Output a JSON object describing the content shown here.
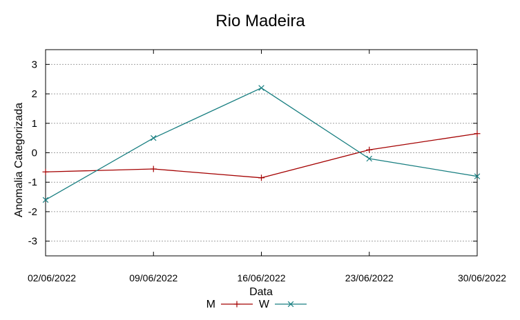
{
  "chart_data": {
    "type": "line",
    "title": "Rio Madeira",
    "xlabel": "Data",
    "ylabel": "Anomalia Categorizada",
    "categories": [
      "02/06/2022",
      "09/06/2022",
      "16/06/2022",
      "23/06/2022",
      "30/06/2022"
    ],
    "y_ticks": [
      "3",
      "2",
      "1",
      "0",
      "-1",
      "-2",
      "-3"
    ],
    "ylim": [
      -3.5,
      3.5
    ],
    "grid": true,
    "legend_position": "bottom",
    "series": [
      {
        "name": "M",
        "color": "#a40000",
        "marker": "plus",
        "values": [
          -0.65,
          -0.55,
          -0.85,
          0.1,
          0.65
        ]
      },
      {
        "name": "W",
        "color": "#177e80",
        "marker": "cross",
        "values": [
          -1.6,
          0.5,
          2.2,
          -0.2,
          -0.8
        ]
      }
    ]
  }
}
